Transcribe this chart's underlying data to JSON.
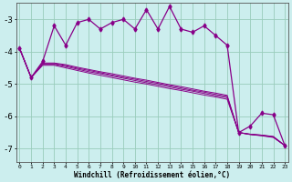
{
  "xlabel": "Windchill (Refroidissement éolien,°C)",
  "x": [
    0,
    1,
    2,
    3,
    4,
    5,
    6,
    7,
    8,
    9,
    10,
    11,
    12,
    13,
    14,
    15,
    16,
    17,
    18,
    19,
    20,
    21,
    22,
    23
  ],
  "y_main": [
    -3.9,
    -4.8,
    -4.3,
    -3.2,
    -3.8,
    -3.1,
    -3.0,
    -3.3,
    -3.1,
    -3.0,
    -3.3,
    -2.7,
    -3.3,
    -2.6,
    -3.3,
    -3.4,
    -3.2,
    -3.5,
    -3.8,
    -6.5,
    -6.3,
    -5.9,
    -5.95,
    -6.9
  ],
  "y_band": [
    [
      -3.9,
      -4.8,
      -4.35,
      -4.35,
      -4.4,
      -4.48,
      -4.55,
      -4.62,
      -4.68,
      -4.75,
      -4.82,
      -4.88,
      -4.95,
      -5.02,
      -5.08,
      -5.15,
      -5.22,
      -5.28,
      -5.35,
      -6.5,
      -6.55,
      -6.58,
      -6.62,
      -6.9
    ],
    [
      -3.9,
      -4.8,
      -4.37,
      -4.37,
      -4.43,
      -4.51,
      -4.58,
      -4.65,
      -4.72,
      -4.79,
      -4.85,
      -4.92,
      -4.98,
      -5.05,
      -5.12,
      -5.19,
      -5.25,
      -5.32,
      -5.38,
      -6.5,
      -6.55,
      -6.58,
      -6.63,
      -6.9
    ],
    [
      -3.9,
      -4.8,
      -4.39,
      -4.39,
      -4.46,
      -4.54,
      -4.62,
      -4.68,
      -4.75,
      -4.82,
      -4.89,
      -4.96,
      -5.02,
      -5.09,
      -5.16,
      -5.22,
      -5.29,
      -5.36,
      -5.42,
      -6.5,
      -6.56,
      -6.59,
      -6.64,
      -6.9
    ],
    [
      -3.9,
      -4.8,
      -4.42,
      -4.42,
      -4.5,
      -4.58,
      -4.66,
      -4.73,
      -4.8,
      -4.87,
      -4.94,
      -5.0,
      -5.07,
      -5.14,
      -5.2,
      -5.27,
      -5.34,
      -5.4,
      -5.47,
      -6.5,
      -6.56,
      -6.6,
      -6.65,
      -6.9
    ]
  ],
  "line_color": "#880088",
  "bg_color": "#cceeee",
  "grid_color": "#99ccbb",
  "ylim": [
    -7.4,
    -2.5
  ],
  "yticks": [
    -7,
    -6,
    -5,
    -4,
    -3
  ],
  "xlim": [
    -0.3,
    23.3
  ],
  "figsize": [
    3.2,
    2.0
  ],
  "dpi": 100
}
